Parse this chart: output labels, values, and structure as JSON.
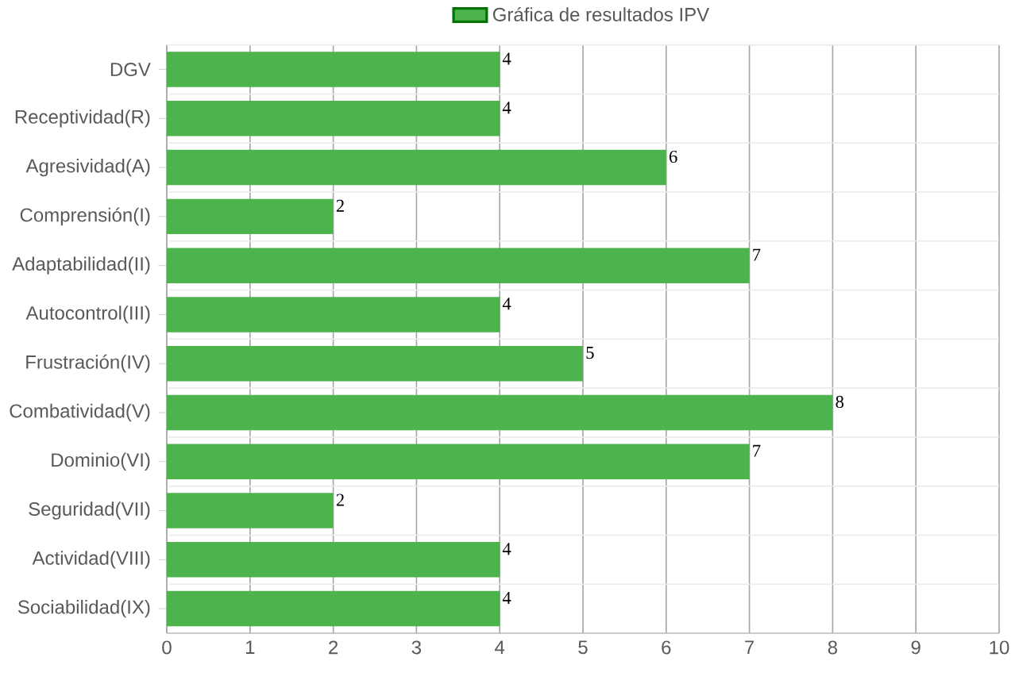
{
  "chart_data": {
    "type": "bar",
    "orientation": "horizontal",
    "categories": [
      "DGV",
      "Receptividad(R)",
      "Agresividad(A)",
      "Comprensión(I)",
      "Adaptabilidad(II)",
      "Autocontrol(III)",
      "Frustración(IV)",
      "Combatividad(V)",
      "Dominio(VI)",
      "Seguridad(VII)",
      "Actividad(VIII)",
      "Sociabilidad(IX)"
    ],
    "series": [
      {
        "name": "Gráfica de resultados IPV",
        "color": "#4db34d",
        "values": [
          4,
          4,
          6,
          2,
          7,
          4,
          5,
          8,
          7,
          2,
          4,
          4
        ]
      }
    ],
    "xlim": [
      0,
      10
    ],
    "xticks": [
      0,
      1,
      2,
      3,
      4,
      5,
      6,
      7,
      8,
      9,
      10
    ],
    "grid": true,
    "legend": "top",
    "data_labels": true
  }
}
